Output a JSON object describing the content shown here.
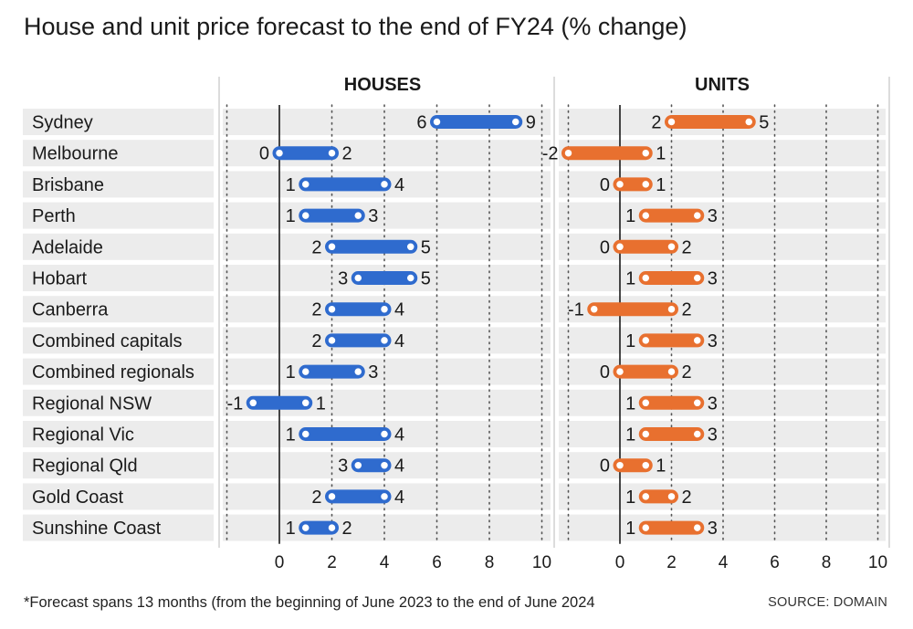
{
  "title": "House and unit price forecast to the end of FY24 (% change)",
  "footnote": "*Forecast spans 13 months (from the beginning of June 2023 to the end of June 2024",
  "source": "SOURCE: DOMAIN",
  "colors": {
    "houses": "#2f6bce",
    "units": "#e8702f",
    "row_shade": "#ececec"
  },
  "chart_data": [
    {
      "type": "bar",
      "panel": "HOUSES",
      "title": "HOUSES",
      "xlim": [
        -2,
        10
      ],
      "xticks": [
        0,
        2,
        4,
        6,
        8,
        10
      ],
      "grid": true,
      "categories": [
        "Sydney",
        "Melbourne",
        "Brisbane",
        "Perth",
        "Adelaide",
        "Hobart",
        "Canberra",
        "Combined capitals",
        "Combined regionals",
        "Regional NSW",
        "Regional Vic",
        "Regional Qld",
        "Gold Coast",
        "Sunshine Coast"
      ],
      "low": [
        6,
        0,
        1,
        1,
        2,
        3,
        2,
        2,
        1,
        -1,
        1,
        3,
        2,
        1
      ],
      "high": [
        9,
        2,
        4,
        3,
        5,
        5,
        4,
        4,
        3,
        1,
        4,
        4,
        4,
        2
      ]
    },
    {
      "type": "bar",
      "panel": "UNITS",
      "title": "UNITS",
      "xlim": [
        -2,
        10
      ],
      "xticks": [
        0,
        2,
        4,
        6,
        8,
        10
      ],
      "grid": true,
      "categories": [
        "Sydney",
        "Melbourne",
        "Brisbane",
        "Perth",
        "Adelaide",
        "Hobart",
        "Canberra",
        "Combined capitals",
        "Combined regionals",
        "Regional NSW",
        "Regional Vic",
        "Regional Qld",
        "Gold Coast",
        "Sunshine Coast"
      ],
      "low": [
        2,
        -2,
        0,
        1,
        0,
        1,
        -1,
        1,
        0,
        1,
        1,
        0,
        1,
        1
      ],
      "high": [
        5,
        1,
        1,
        3,
        2,
        3,
        2,
        3,
        2,
        3,
        3,
        1,
        2,
        3
      ]
    }
  ]
}
